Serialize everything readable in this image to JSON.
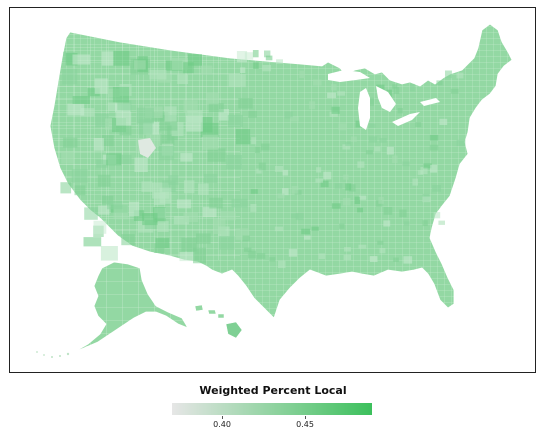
{
  "legend": {
    "title": "Weighted Percent Local",
    "ticks": [
      {
        "label": "0.40",
        "value": 0.4
      },
      {
        "label": "0.45",
        "value": 0.45
      }
    ],
    "range": [
      0.37,
      0.49
    ],
    "colors": {
      "low": "#e6e6e6",
      "high": "#3cc05c"
    }
  },
  "map": {
    "region": "United States (counties)",
    "base_color": "#93d8a3",
    "border_color": "#ffffff"
  }
}
